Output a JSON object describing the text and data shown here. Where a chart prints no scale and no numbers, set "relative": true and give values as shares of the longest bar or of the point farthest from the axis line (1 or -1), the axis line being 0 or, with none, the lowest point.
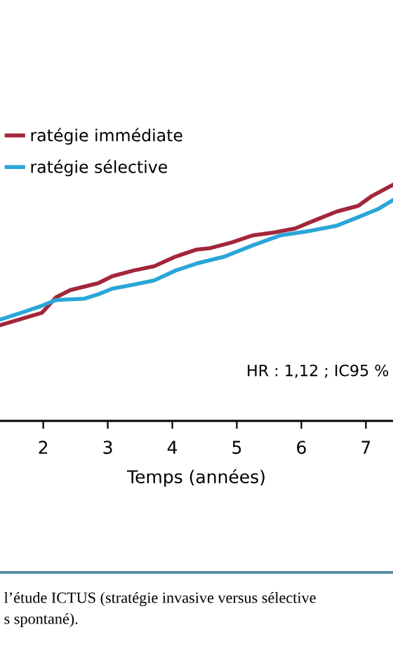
{
  "chart_data": {
    "type": "line",
    "relative": true,
    "xlabel": "Temps (années)",
    "xlim": [
      1.33,
      7.42
    ],
    "xticks": [
      2,
      3,
      4,
      5,
      6,
      7
    ],
    "legend": "top left",
    "grid": false,
    "series": [
      {
        "name": "ratégie immédiate",
        "color": "#a3263a",
        "x": [
          1.33,
          1.55,
          1.98,
          2.2,
          2.42,
          2.85,
          3.07,
          3.4,
          3.72,
          4.05,
          4.38,
          4.59,
          4.92,
          5.25,
          5.57,
          5.9,
          6.22,
          6.55,
          6.88,
          7.09,
          7.42
        ],
        "values": [
          0.405,
          0.423,
          0.458,
          0.524,
          0.554,
          0.583,
          0.613,
          0.637,
          0.655,
          0.696,
          0.726,
          0.732,
          0.756,
          0.786,
          0.798,
          0.815,
          0.851,
          0.887,
          0.911,
          0.952,
          1
        ]
      },
      {
        "name": "ratégie sélective",
        "color": "#2aa6d8",
        "x": [
          1.33,
          1.66,
          1.98,
          2.2,
          2.64,
          2.85,
          3.07,
          3.4,
          3.72,
          4.05,
          4.38,
          4.81,
          5.25,
          5.68,
          6.11,
          6.55,
          6.88,
          7.2,
          7.42
        ],
        "values": [
          0.429,
          0.458,
          0.488,
          0.512,
          0.518,
          0.536,
          0.56,
          0.577,
          0.595,
          0.637,
          0.667,
          0.696,
          0.744,
          0.786,
          0.804,
          0.827,
          0.863,
          0.899,
          0.935
        ]
      }
    ],
    "annotations": [
      "HR : 1,12 ; IC95 %",
      "l’étude ICTUS (stratégie invasive versus sélective",
      "s spontané)."
    ]
  }
}
